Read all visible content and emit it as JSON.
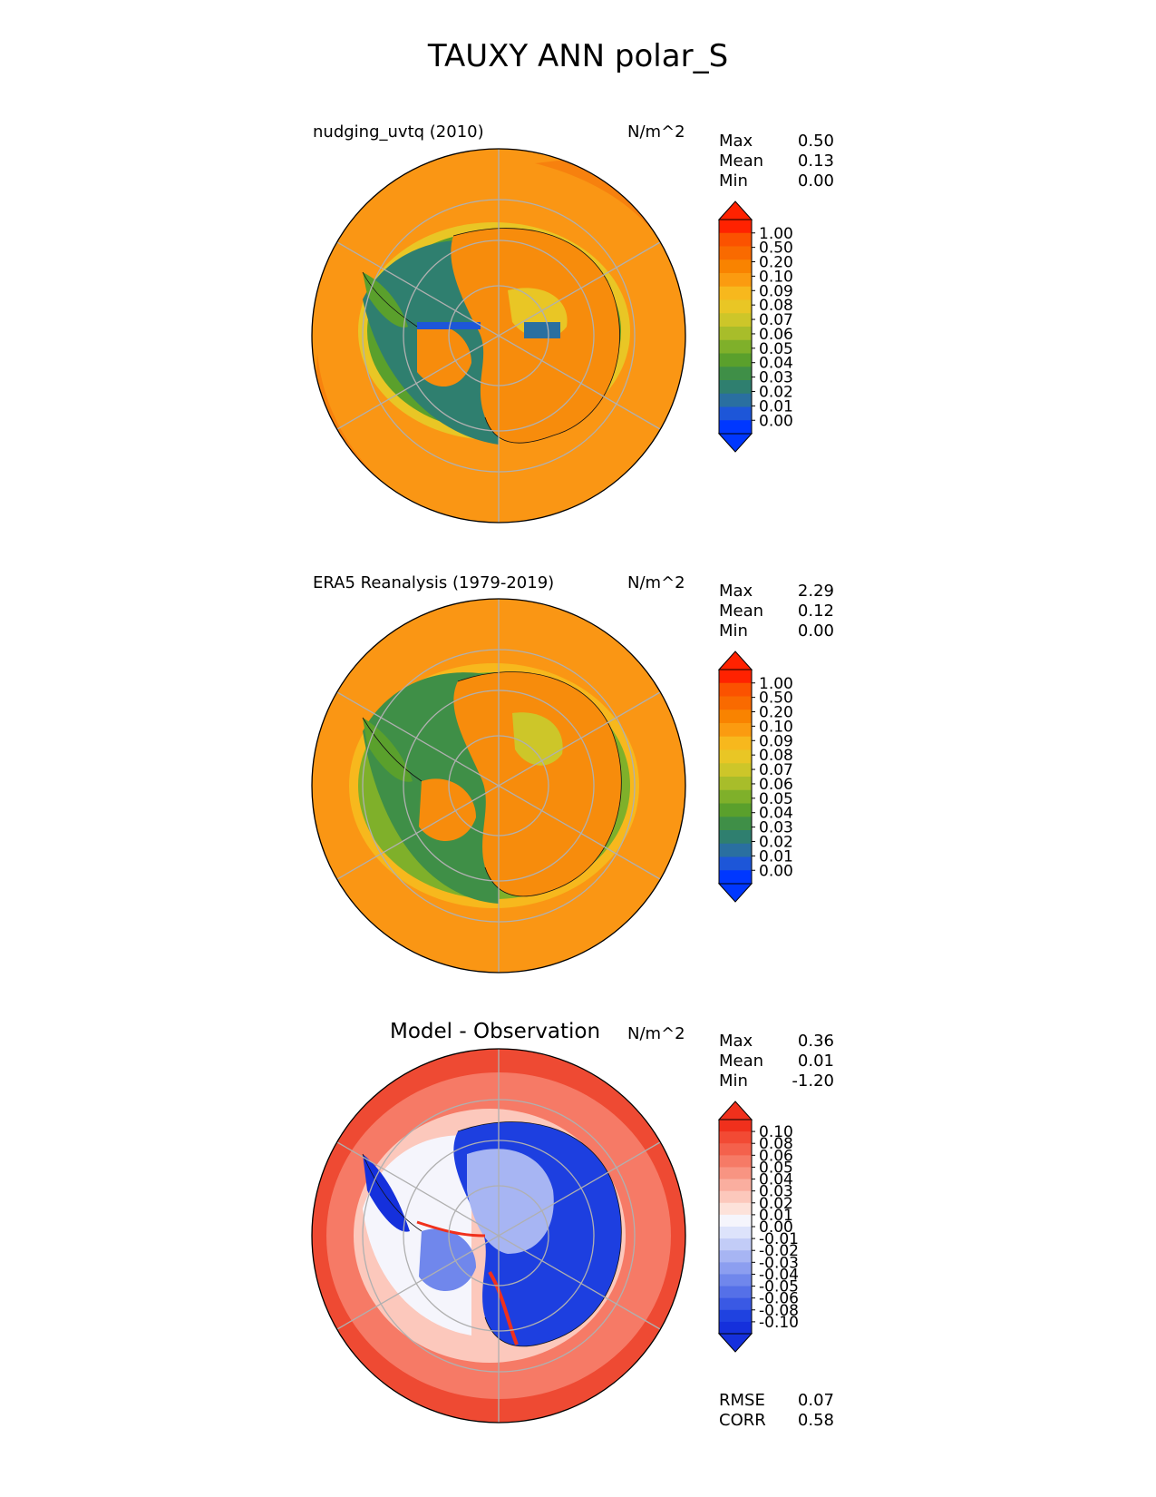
{
  "figure_title": "TAUXY ANN polar_S",
  "colors": {
    "land_orange": "#f78c0c",
    "ocean_orange": "#fa9614",
    "deep_orange": "#f5730a",
    "green": "#5aa628",
    "blue_green": "#2f7f8f",
    "blue": "#1f4fd6",
    "diff_red": "#ee4a33",
    "diff_blue": "#1d3fe0",
    "grid": "#b0b0b0"
  },
  "panels": [
    {
      "title": "nudging_uvtq (2010)",
      "units": "N/m^2",
      "stats": [
        {
          "label": "Max",
          "value": "0.50"
        },
        {
          "label": "Mean",
          "value": "0.13"
        },
        {
          "label": "Min",
          "value": "0.00"
        }
      ],
      "colorbar": {
        "ticks": [
          "1.00",
          "0.50",
          "0.20",
          "0.10",
          "0.09",
          "0.08",
          "0.07",
          "0.06",
          "0.05",
          "0.04",
          "0.03",
          "0.02",
          "0.01",
          "0.00"
        ],
        "colors": [
          "#ff2200",
          "#fb5200",
          "#f96a00",
          "#f98300",
          "#fb9b10",
          "#f7b81d",
          "#e9c625",
          "#cdc629",
          "#a8bd2a",
          "#7fb02a",
          "#5aa02c",
          "#3f8f47",
          "#2f7f6f",
          "#2a6fa0",
          "#1d56d8",
          "#0037ff"
        ],
        "cap_top": "#ff2200",
        "cap_bottom": "#0037ff"
      }
    },
    {
      "title": "ERA5 Reanalysis (1979-2019)",
      "units": "N/m^2",
      "stats": [
        {
          "label": "Max",
          "value": "2.29"
        },
        {
          "label": "Mean",
          "value": "0.12"
        },
        {
          "label": "Min",
          "value": "0.00"
        }
      ],
      "colorbar": {
        "ticks": [
          "1.00",
          "0.50",
          "0.20",
          "0.10",
          "0.09",
          "0.08",
          "0.07",
          "0.06",
          "0.05",
          "0.04",
          "0.03",
          "0.02",
          "0.01",
          "0.00"
        ],
        "colors": [
          "#ff2200",
          "#fb5200",
          "#f96a00",
          "#f98300",
          "#fb9b10",
          "#f7b81d",
          "#e9c625",
          "#cdc629",
          "#a8bd2a",
          "#7fb02a",
          "#5aa02c",
          "#3f8f47",
          "#2f7f6f",
          "#2a6fa0",
          "#1d56d8",
          "#0037ff"
        ],
        "cap_top": "#ff2200",
        "cap_bottom": "#0037ff"
      }
    },
    {
      "title": "Model - Observation",
      "units": "N/m^2",
      "stats": [
        {
          "label": "Max",
          "value": "0.36"
        },
        {
          "label": "Mean",
          "value": "0.01"
        },
        {
          "label": "Min",
          "value": "-1.20"
        }
      ],
      "colorbar": {
        "ticks": [
          "0.10",
          "0.08",
          "0.06",
          "0.05",
          "0.04",
          "0.03",
          "0.02",
          "0.01",
          "0.00",
          "-0.01",
          "-0.02",
          "-0.03",
          "-0.04",
          "-0.05",
          "-0.06",
          "-0.08",
          "-0.10"
        ],
        "colors": [
          "#f0301c",
          "#f24a34",
          "#f4614c",
          "#f67a66",
          "#f89482",
          "#faae9f",
          "#fcc8bc",
          "#fde2da",
          "#f5f5fc",
          "#dde3fb",
          "#c2ccf7",
          "#a7b5f3",
          "#8c9ef0",
          "#7087ec",
          "#5570e8",
          "#3a59e4",
          "#1f42e0",
          "#1530dc"
        ],
        "cap_top": "#f0301c",
        "cap_bottom": "#1530dc"
      },
      "extra_stats": [
        {
          "label": "RMSE",
          "value": "0.07"
        },
        {
          "label": "CORR",
          "value": "0.58"
        }
      ]
    }
  ],
  "chart_data": [
    {
      "type": "heatmap",
      "title": "nudging_uvtq (2010)",
      "projection": "south polar stereographic",
      "variable": "TAUXY",
      "units": "N/m^2",
      "max": 0.5,
      "mean": 0.13,
      "min": 0.0,
      "levels": [
        0.0,
        0.01,
        0.02,
        0.03,
        0.04,
        0.05,
        0.06,
        0.07,
        0.08,
        0.09,
        0.1,
        0.2,
        0.5,
        1.0
      ]
    },
    {
      "type": "heatmap",
      "title": "ERA5 Reanalysis (1979-2019)",
      "projection": "south polar stereographic",
      "variable": "TAUXY",
      "units": "N/m^2",
      "max": 2.29,
      "mean": 0.12,
      "min": 0.0,
      "levels": [
        0.0,
        0.01,
        0.02,
        0.03,
        0.04,
        0.05,
        0.06,
        0.07,
        0.08,
        0.09,
        0.1,
        0.2,
        0.5,
        1.0
      ]
    },
    {
      "type": "heatmap",
      "title": "Model - Observation",
      "projection": "south polar stereographic",
      "variable": "TAUXY",
      "units": "N/m^2",
      "max": 0.36,
      "mean": 0.01,
      "min": -1.2,
      "rmse": 0.07,
      "corr": 0.58,
      "levels": [
        -0.1,
        -0.08,
        -0.06,
        -0.05,
        -0.04,
        -0.03,
        -0.02,
        -0.01,
        0.0,
        0.01,
        0.02,
        0.03,
        0.04,
        0.05,
        0.06,
        0.08,
        0.1
      ]
    }
  ]
}
